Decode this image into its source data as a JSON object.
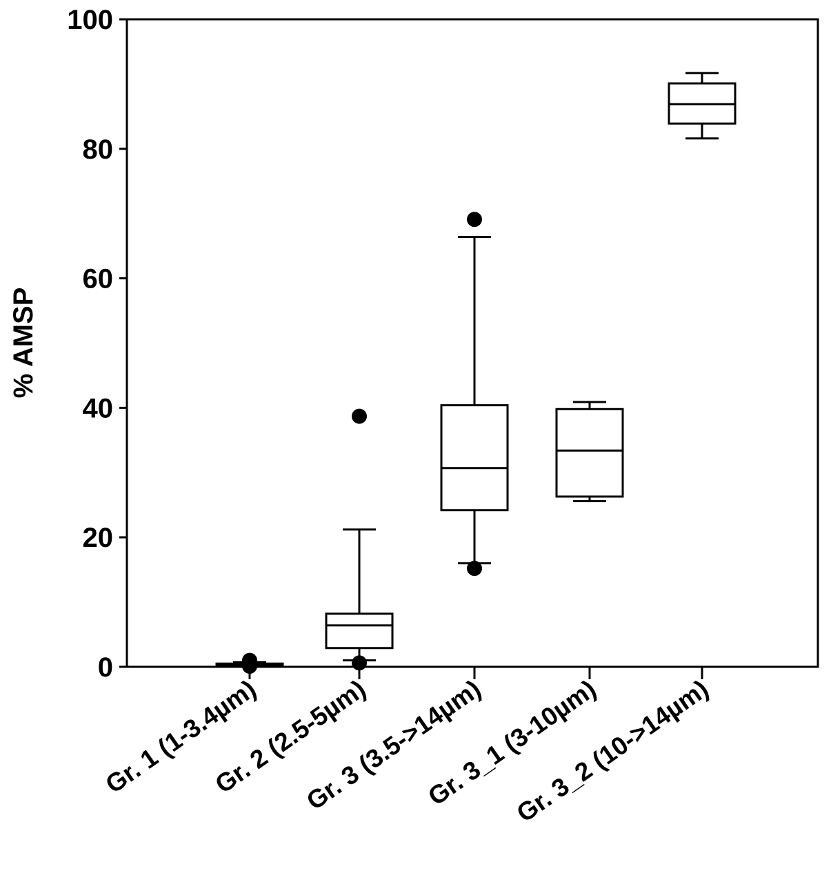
{
  "chart_data": {
    "type": "box",
    "title": "",
    "xlabel": "",
    "ylabel": "% AMSP",
    "ylim": [
      0,
      100
    ],
    "yticks": [
      0,
      20,
      40,
      60,
      80,
      100
    ],
    "ytick_labels": [
      "0",
      "20",
      "40",
      "60",
      "80",
      "100"
    ],
    "grid": false,
    "categories": [
      "Gr. 1 (1-3.4µm)",
      "Gr. 2 (2.5-5µm)",
      "Gr. 3 (3.5->14µm)",
      "Gr. 3_1 (3-10µm)",
      "Gr. 3_2 (10->14µm)"
    ],
    "boxes": [
      {
        "whisker_low": 0.2,
        "q1": 0.3,
        "median": 0.4,
        "q3": 0.5,
        "whisker_high": 0.7,
        "outliers": [
          0.1,
          1.0
        ]
      },
      {
        "whisker_low": 1.0,
        "q1": 2.9,
        "median": 6.4,
        "q3": 8.2,
        "whisker_high": 21.2,
        "outliers": [
          0.6,
          38.7
        ]
      },
      {
        "whisker_low": 16.0,
        "q1": 24.2,
        "median": 30.7,
        "q3": 40.4,
        "whisker_high": 66.4,
        "outliers": [
          15.2,
          69.1
        ]
      },
      {
        "whisker_low": 25.6,
        "q1": 26.3,
        "median": 33.4,
        "q3": 39.8,
        "whisker_high": 40.9,
        "outliers": []
      },
      {
        "whisker_low": 81.6,
        "q1": 83.9,
        "median": 86.9,
        "q3": 90.1,
        "whisker_high": 91.7,
        "outliers": []
      }
    ]
  }
}
